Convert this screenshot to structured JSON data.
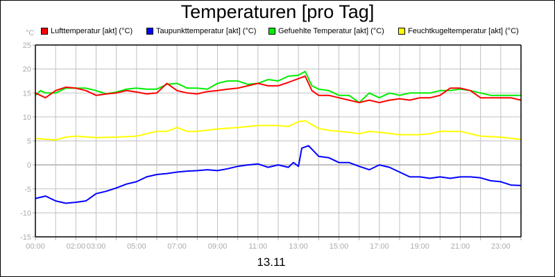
{
  "chart_data": {
    "type": "line",
    "title": "Temperaturen [pro Tag]",
    "ylabel": "°C",
    "xlabel": "13.11",
    "ylim": [
      -15,
      25
    ],
    "yticks": [
      25,
      20,
      15,
      10,
      5,
      0,
      -5,
      -10,
      -15
    ],
    "xlim": [
      "00:00",
      "24:00"
    ],
    "xtick_labels": [
      {
        "t": "00:00"
      },
      {
        "t": "02:00"
      },
      {
        "t": "03:00"
      },
      {
        "t": "05:00"
      },
      {
        "t": "07:00"
      },
      {
        "t": "09:00"
      },
      {
        "t": "11:00"
      },
      {
        "t": "13:00"
      },
      {
        "t": "15:00"
      },
      {
        "t": "17:00"
      },
      {
        "t": "19:00"
      },
      {
        "t": "21:00"
      },
      {
        "t": "23:00"
      }
    ],
    "grid": true,
    "legend_placement": "top",
    "series": [
      {
        "name": "Lufttemperatur [akt] (°C)",
        "color": "#ff0000",
        "points": [
          [
            "00:00",
            15
          ],
          [
            "00:30",
            14
          ],
          [
            "01:00",
            15.5
          ],
          [
            "01:30",
            16.2
          ],
          [
            "02:00",
            16
          ],
          [
            "02:30",
            15.5
          ],
          [
            "03:00",
            14.5
          ],
          [
            "03:30",
            14.8
          ],
          [
            "04:00",
            15
          ],
          [
            "04:30",
            15.5
          ],
          [
            "05:00",
            15.2
          ],
          [
            "05:30",
            14.8
          ],
          [
            "06:00",
            15
          ],
          [
            "06:30",
            17
          ],
          [
            "07:00",
            15.5
          ],
          [
            "07:30",
            15
          ],
          [
            "08:00",
            14.8
          ],
          [
            "08:30",
            15.3
          ],
          [
            "09:00",
            15.5
          ],
          [
            "09:30",
            15.8
          ],
          [
            "10:00",
            16
          ],
          [
            "10:30",
            16.5
          ],
          [
            "11:00",
            17
          ],
          [
            "11:30",
            16.5
          ],
          [
            "12:00",
            16.5
          ],
          [
            "12:30",
            17.2
          ],
          [
            "13:00",
            18
          ],
          [
            "13:20",
            18.5
          ],
          [
            "13:40",
            15.5
          ],
          [
            "14:00",
            14.5
          ],
          [
            "14:30",
            14.5
          ],
          [
            "15:00",
            14
          ],
          [
            "15:30",
            13.5
          ],
          [
            "16:00",
            13
          ],
          [
            "16:30",
            13.5
          ],
          [
            "17:00",
            13
          ],
          [
            "17:30",
            13.5
          ],
          [
            "18:00",
            13.8
          ],
          [
            "18:30",
            13.5
          ],
          [
            "19:00",
            14
          ],
          [
            "19:30",
            14
          ],
          [
            "20:00",
            14.5
          ],
          [
            "20:30",
            16
          ],
          [
            "21:00",
            16
          ],
          [
            "21:30",
            15.5
          ],
          [
            "22:00",
            14
          ],
          [
            "22:30",
            14
          ],
          [
            "23:00",
            14
          ],
          [
            "23:30",
            14
          ],
          [
            "24:00",
            13.5
          ]
        ]
      },
      {
        "name": "Taupunkttemperatur [akt] (°C)",
        "color": "#0000ff",
        "points": [
          [
            "00:00",
            -7
          ],
          [
            "00:30",
            -6.5
          ],
          [
            "01:00",
            -7.5
          ],
          [
            "01:30",
            -8
          ],
          [
            "02:00",
            -7.8
          ],
          [
            "02:30",
            -7.5
          ],
          [
            "03:00",
            -6
          ],
          [
            "03:30",
            -5.5
          ],
          [
            "04:00",
            -4.8
          ],
          [
            "04:30",
            -4
          ],
          [
            "05:00",
            -3.5
          ],
          [
            "05:30",
            -2.5
          ],
          [
            "06:00",
            -2
          ],
          [
            "06:30",
            -1.8
          ],
          [
            "07:00",
            -1.5
          ],
          [
            "07:30",
            -1.3
          ],
          [
            "08:00",
            -1.2
          ],
          [
            "08:30",
            -1
          ],
          [
            "09:00",
            -1.2
          ],
          [
            "09:30",
            -0.8
          ],
          [
            "10:00",
            -0.3
          ],
          [
            "10:30",
            0
          ],
          [
            "11:00",
            0.2
          ],
          [
            "11:30",
            -0.5
          ],
          [
            "12:00",
            0
          ],
          [
            "12:30",
            -0.5
          ],
          [
            "12:45",
            0.5
          ],
          [
            "13:00",
            -0.3
          ],
          [
            "13:10",
            3.5
          ],
          [
            "13:30",
            4
          ],
          [
            "14:00",
            1.8
          ],
          [
            "14:30",
            1.5
          ],
          [
            "15:00",
            0.5
          ],
          [
            "15:30",
            0.5
          ],
          [
            "16:00",
            -0.3
          ],
          [
            "16:30",
            -1
          ],
          [
            "17:00",
            0
          ],
          [
            "17:30",
            -0.5
          ],
          [
            "18:00",
            -1.5
          ],
          [
            "18:30",
            -2.5
          ],
          [
            "19:00",
            -2.5
          ],
          [
            "19:30",
            -2.8
          ],
          [
            "20:00",
            -2.5
          ],
          [
            "20:30",
            -2.8
          ],
          [
            "21:00",
            -2.5
          ],
          [
            "21:30",
            -2.5
          ],
          [
            "22:00",
            -2.7
          ],
          [
            "22:30",
            -3.3
          ],
          [
            "23:00",
            -3.5
          ],
          [
            "23:30",
            -4.2
          ],
          [
            "24:00",
            -4.3
          ]
        ]
      },
      {
        "name": "Gefuehlte Temperatur [akt] (°C)",
        "color": "#00ee00",
        "points": [
          [
            "00:00",
            14.5
          ],
          [
            "00:15",
            15.5
          ],
          [
            "00:30",
            15
          ],
          [
            "01:00",
            15
          ],
          [
            "01:30",
            16
          ],
          [
            "02:00",
            16
          ],
          [
            "02:30",
            16
          ],
          [
            "03:00",
            15.5
          ],
          [
            "03:30",
            14.8
          ],
          [
            "04:00",
            15.2
          ],
          [
            "04:30",
            15.8
          ],
          [
            "05:00",
            16
          ],
          [
            "05:30",
            15.8
          ],
          [
            "06:00",
            15.8
          ],
          [
            "06:30",
            16.8
          ],
          [
            "07:00",
            17
          ],
          [
            "07:30",
            16
          ],
          [
            "08:00",
            16
          ],
          [
            "08:30",
            15.8
          ],
          [
            "09:00",
            17
          ],
          [
            "09:30",
            17.5
          ],
          [
            "10:00",
            17.5
          ],
          [
            "10:30",
            16.8
          ],
          [
            "11:00",
            17
          ],
          [
            "11:30",
            17.8
          ],
          [
            "12:00",
            17.5
          ],
          [
            "12:30",
            18.5
          ],
          [
            "13:00",
            18.7
          ],
          [
            "13:20",
            19.5
          ],
          [
            "13:40",
            16.5
          ],
          [
            "14:00",
            15.8
          ],
          [
            "14:30",
            15.5
          ],
          [
            "15:00",
            14.5
          ],
          [
            "15:30",
            14.5
          ],
          [
            "16:00",
            13
          ],
          [
            "16:30",
            15
          ],
          [
            "17:00",
            14
          ],
          [
            "17:30",
            15
          ],
          [
            "18:00",
            14.5
          ],
          [
            "18:30",
            15
          ],
          [
            "19:00",
            15
          ],
          [
            "19:30",
            15
          ],
          [
            "20:00",
            15.5
          ],
          [
            "20:30",
            15.5
          ],
          [
            "21:00",
            15.8
          ],
          [
            "21:30",
            15.5
          ],
          [
            "22:00",
            15
          ],
          [
            "22:30",
            14.5
          ],
          [
            "23:00",
            14.5
          ],
          [
            "23:30",
            14.5
          ],
          [
            "24:00",
            14.5
          ]
        ]
      },
      {
        "name": "Feuchtkugeltemperatur [akt] (°C)",
        "color": "#ffff00",
        "points": [
          [
            "00:00",
            5.5
          ],
          [
            "01:00",
            5.2
          ],
          [
            "01:30",
            5.8
          ],
          [
            "02:00",
            6
          ],
          [
            "03:00",
            5.7
          ],
          [
            "04:00",
            5.8
          ],
          [
            "05:00",
            6
          ],
          [
            "06:00",
            7
          ],
          [
            "06:30",
            7
          ],
          [
            "07:00",
            7.8
          ],
          [
            "07:30",
            7
          ],
          [
            "08:00",
            7
          ],
          [
            "09:00",
            7.5
          ],
          [
            "10:00",
            7.8
          ],
          [
            "11:00",
            8.2
          ],
          [
            "12:00",
            8.2
          ],
          [
            "12:30",
            8
          ],
          [
            "13:00",
            9
          ],
          [
            "13:20",
            9.2
          ],
          [
            "14:00",
            7.6
          ],
          [
            "14:30",
            7.2
          ],
          [
            "15:00",
            7
          ],
          [
            "15:30",
            6.8
          ],
          [
            "16:00",
            6.5
          ],
          [
            "16:30",
            7
          ],
          [
            "17:00",
            6.8
          ],
          [
            "18:00",
            6.3
          ],
          [
            "19:00",
            6.3
          ],
          [
            "19:30",
            6.5
          ],
          [
            "20:00",
            7
          ],
          [
            "20:30",
            7
          ],
          [
            "21:00",
            7
          ],
          [
            "21:30",
            6.5
          ],
          [
            "22:00",
            6
          ],
          [
            "23:00",
            5.8
          ],
          [
            "24:00",
            5.3
          ]
        ]
      }
    ]
  }
}
